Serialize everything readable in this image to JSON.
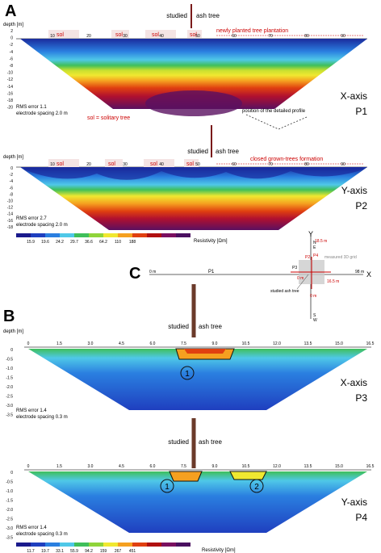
{
  "panel_a": {
    "letter": "A",
    "studied_label_left": "studied",
    "studied_label_right": "ash tree",
    "p1": {
      "depth_label": "depth [m]",
      "y_ticks": [
        "2",
        "0",
        "-2",
        "-4",
        "-6",
        "-8",
        "-10",
        "-12",
        "-14",
        "-16",
        "-18",
        "-20"
      ],
      "x_ticks": [
        "10",
        "20",
        "30",
        "40",
        "50",
        "60",
        "70",
        "80",
        "90"
      ],
      "sol_labels": [
        "sol",
        "sol",
        "sol",
        "sol"
      ],
      "plantation_label": "newly planted tree plantation",
      "axis_title": "X-axis",
      "profile_name": "P1",
      "rms": "RMS error 1.1",
      "spacing": "electrode spacing 2.0 m",
      "sol_note": "sol = solitary tree",
      "detail_note": "position of the detailed profile"
    },
    "p2": {
      "depth_label": "depth [m]",
      "y_ticks": [
        "0",
        "-2",
        "-4",
        "-6",
        "-8",
        "-10",
        "-12",
        "-14",
        "-16",
        "-18"
      ],
      "x_ticks": [
        "10",
        "20",
        "30",
        "40",
        "50",
        "60",
        "70",
        "80",
        "90"
      ],
      "sol_labels": [
        "sol",
        "sol",
        "sol",
        "sol"
      ],
      "formation_label": "closed grown-trees formation",
      "axis_title": "Y-axis",
      "profile_name": "P2",
      "rms": "RMS error 2.7",
      "spacing": "electrode spacing 2.0 m"
    },
    "legend": {
      "values": [
        "15.9",
        "19.6",
        "24.2",
        "29.7",
        "36.6",
        "64.2",
        "110",
        "188"
      ],
      "unit": "Resistivity [Ωm]",
      "colors": [
        "#1a1a8c",
        "#1f3fbf",
        "#2a7fe0",
        "#4fc8e8",
        "#3fbf5a",
        "#8fd43a",
        "#f0e830",
        "#f5a020",
        "#e04010",
        "#b01010",
        "#7a1060",
        "#4a1060"
      ]
    }
  },
  "panel_c": {
    "letter": "C",
    "y_label": "Y",
    "x_label": "X",
    "n_label": "N",
    "s_label": "S",
    "e_label": "E",
    "w_label": "W",
    "p1_label": "P1",
    "p2_label": "P2",
    "p3_label": "P3",
    "p4_label": "P4",
    "left_0": "0 m",
    "right_98": "98 m",
    "top_dist": "18.5 m",
    "grid_label": "measured 3D grid",
    "ash_label": "studied ash tree",
    "bottom_0": "0 m",
    "mid_165": "16.5 m",
    "mid_0": "0 m"
  },
  "panel_b": {
    "letter": "B",
    "studied_label_left": "studied",
    "studied_label_right": "ash tree",
    "p3": {
      "depth_label": "depth [m]",
      "y_ticks": [
        "0",
        "-0.5",
        "-1.0",
        "-1.5",
        "-2.0",
        "-2.5",
        "-3.0",
        "-3.5"
      ],
      "x_ticks": [
        "0",
        "1.5",
        "3.0",
        "4.5",
        "6.0",
        "7.5",
        "9.0",
        "10.5",
        "12.0",
        "13.5",
        "15.0",
        "16.5"
      ],
      "axis_title": "X-axis",
      "profile_name": "P3",
      "rms": "RMS error 1.4",
      "spacing": "electrode spacing 0.3 m",
      "marker": "1"
    },
    "p4": {
      "y_ticks": [
        "0",
        "-0.5",
        "-1.0",
        "-1.5",
        "-2.0",
        "-2.5",
        "-3.0",
        "-3.5"
      ],
      "x_ticks": [
        "0",
        "1.5",
        "3.0",
        "4.5",
        "6.0",
        "7.5",
        "9.0",
        "10.5",
        "12.0",
        "13.5",
        "15.0",
        "16.5"
      ],
      "axis_title": "Y-axis",
      "profile_name": "P4",
      "rms": "RMS error 1.4",
      "spacing": "electrode spacing 0.3 m",
      "marker1": "1",
      "marker2": "2"
    },
    "legend": {
      "values": [
        "11.7",
        "19.7",
        "33.1",
        "55.9",
        "94.2",
        "159",
        "267",
        "451"
      ],
      "unit": "Resistivity [Ωm]"
    }
  }
}
